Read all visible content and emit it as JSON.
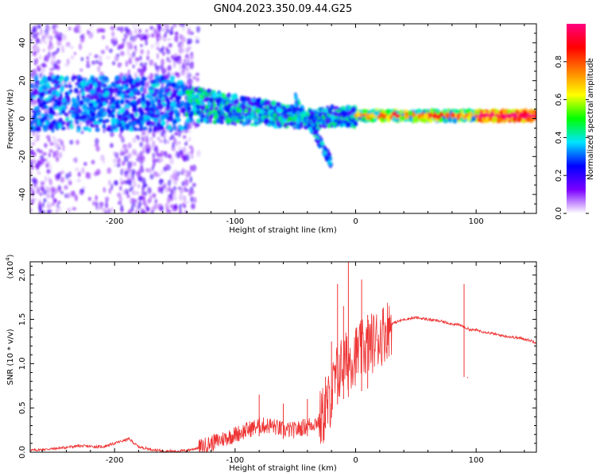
{
  "figure_title": "GN04.2023.350.09.44.G25",
  "chart_data": [
    {
      "type": "heatmap",
      "title": "",
      "xlabel": "Height of straight line (km)",
      "ylabel": "Frequency (Hz)",
      "xlim": [
        -270,
        150
      ],
      "ylim": [
        -50,
        50
      ],
      "xticks": [
        -200,
        -100,
        0,
        100
      ],
      "xtick_labels": [
        "-200",
        "-100",
        "0",
        "100"
      ],
      "yticks": [
        -40,
        -20,
        0,
        20,
        40
      ],
      "ytick_labels": [
        "-40",
        "-20",
        "0",
        "20",
        "40"
      ],
      "colorbar": {
        "label": "Normalized spectral amplitude",
        "range": [
          0,
          1
        ],
        "ticks": [
          0.0,
          0.2,
          0.4,
          0.6,
          0.8
        ],
        "tick_labels": [
          "0.0",
          "0.2",
          "0.4",
          "0.6",
          "0.8"
        ],
        "colors": [
          "#ffffff",
          "#7b00ff",
          "#0000ff",
          "#00e5ff",
          "#00ff00",
          "#ffff00",
          "#ff8000",
          "#ff0000",
          "#ff0080"
        ]
      },
      "grid": false
    },
    {
      "type": "line",
      "title": "",
      "xlabel": "Height of straight line (km)",
      "ylabel": "SNR (10 * v/v)",
      "y_scale_label": "(x10",
      "y_scale_exp": "4",
      "y_scale_close": ")",
      "xlim": [
        -270,
        150
      ],
      "ylim": [
        0,
        2.15
      ],
      "xticks": [
        -200,
        -100,
        0,
        100
      ],
      "xtick_labels": [
        "-200",
        "-100",
        "0",
        "100"
      ],
      "yticks": [
        0.0,
        0.5,
        1.0,
        1.5,
        2.0
      ],
      "ytick_labels": [
        "0.0",
        "0.5",
        "1.0",
        "1.5",
        "2.0"
      ],
      "line_color": "#ee3333",
      "grid": false,
      "x": [
        -270,
        -250,
        -230,
        -210,
        -195,
        -188,
        -180,
        -165,
        -150,
        -140,
        -130,
        -120,
        -110,
        -100,
        -90,
        -80,
        -70,
        -60,
        -50,
        -40,
        -30,
        -25,
        -20,
        -15,
        -10,
        -5,
        0,
        10,
        20,
        30,
        40,
        50,
        60,
        70,
        80,
        88,
        92,
        96,
        100,
        110,
        120,
        130,
        140,
        150
      ],
      "values": [
        0.02,
        0.04,
        0.07,
        0.06,
        0.12,
        0.15,
        0.06,
        0.02,
        0.01,
        0.02,
        0.05,
        0.1,
        0.15,
        0.2,
        0.25,
        0.3,
        0.3,
        0.25,
        0.25,
        0.3,
        0.35,
        0.45,
        0.65,
        0.9,
        1.0,
        1.05,
        1.1,
        1.2,
        1.3,
        1.45,
        1.5,
        1.52,
        1.5,
        1.48,
        1.45,
        1.43,
        1.4,
        1.38,
        1.38,
        1.35,
        1.32,
        1.3,
        1.28,
        1.24
      ],
      "spikes": [
        {
          "x": -80,
          "value": 0.65
        },
        {
          "x": -60,
          "value": 0.55
        },
        {
          "x": -40,
          "value": 0.6
        },
        {
          "x": -25,
          "value": 0.85
        },
        {
          "x": -20,
          "value": 1.25
        },
        {
          "x": -15,
          "value": 1.9
        },
        {
          "x": -10,
          "value": 1.65
        },
        {
          "x": -6,
          "value": 2.15
        },
        {
          "x": 5,
          "value": 1.95
        },
        {
          "x": 10,
          "value": 1.55
        },
        {
          "x": 90,
          "value": 1.9
        },
        {
          "x": 93,
          "value": 0.85
        }
      ]
    }
  ]
}
